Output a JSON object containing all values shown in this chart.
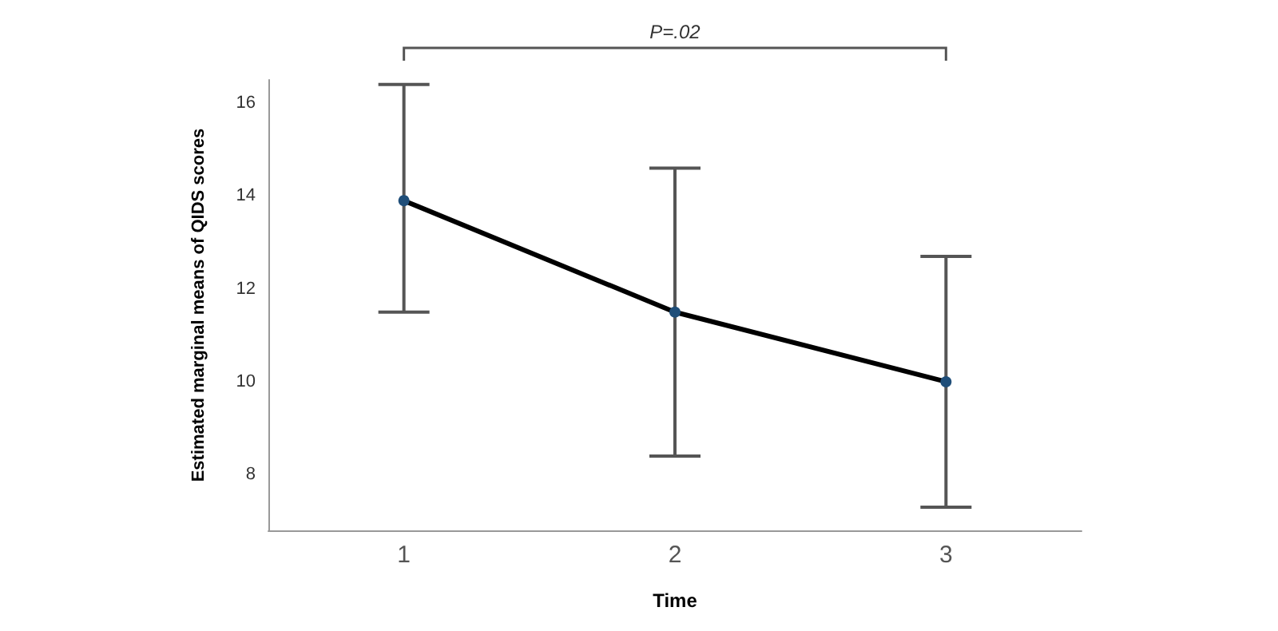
{
  "chart_data": {
    "type": "line",
    "xlabel": "Time",
    "ylabel": "Estimated marginal means of QIDS scores",
    "categories": [
      "1",
      "2",
      "3"
    ],
    "series": [
      {
        "color": "#000000",
        "values": [
          13.9,
          11.5,
          10.0
        ],
        "errors": [
          [
            11.5,
            16.4
          ],
          [
            8.4,
            14.6
          ],
          [
            7.3,
            12.7
          ]
        ]
      }
    ],
    "ylim": [
      6.8,
      16.5
    ],
    "yticks": [
      8,
      10,
      12,
      14,
      16
    ],
    "grid": false,
    "marker": "circle",
    "line_style": "solid",
    "annotations": [
      "P=.02"
    ]
  }
}
